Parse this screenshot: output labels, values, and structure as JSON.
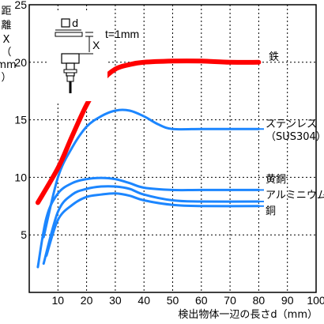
{
  "chart_data": {
    "type": "line",
    "xlabel": "検出物体一辺の長さd（mm）",
    "ylabel": [
      "距",
      "離",
      "X",
      "（",
      "mm",
      "）"
    ],
    "xlim": [
      0,
      100
    ],
    "ylim": [
      0,
      25
    ],
    "xticks": [
      10,
      20,
      30,
      40,
      50,
      60,
      70,
      80,
      90,
      100
    ],
    "yticks": [
      5,
      10,
      15,
      20,
      25
    ],
    "grid": true,
    "series": [
      {
        "name": "鉄",
        "color": "#ff0000",
        "width": 6,
        "x": [
          3,
          10,
          15,
          20,
          25,
          30,
          35,
          40,
          50,
          60,
          70,
          80
        ],
        "y": [
          7.8,
          10.8,
          13.6,
          16.3,
          18.3,
          19.4,
          19.8,
          20.0,
          20.1,
          20.1,
          20.0,
          20.0
        ]
      },
      {
        "name": "ステンレス",
        "name2": "（SUS304）",
        "color": "#1c86ff",
        "width": 3,
        "x": [
          5,
          10,
          15,
          20,
          25,
          30,
          35,
          40,
          45,
          50,
          60,
          70,
          80
        ],
        "y": [
          4.8,
          10.0,
          12.6,
          14.4,
          15.3,
          15.8,
          15.8,
          15.3,
          14.6,
          14.2,
          14.2,
          14.2,
          14.2
        ]
      },
      {
        "name": "黄銅",
        "color": "#1c86ff",
        "width": 3,
        "x": [
          3,
          6,
          10,
          15,
          20,
          25,
          30,
          35,
          40,
          50,
          60,
          80
        ],
        "y": [
          2.2,
          6.5,
          8.6,
          9.5,
          9.85,
          9.95,
          9.85,
          9.5,
          9.1,
          8.9,
          8.9,
          8.9
        ]
      },
      {
        "name": "アルミニウム",
        "color": "#1c86ff",
        "width": 3,
        "x": [
          5,
          10,
          15,
          20,
          25,
          30,
          35,
          40,
          50,
          60,
          80
        ],
        "y": [
          2.5,
          7.0,
          8.5,
          9.0,
          9.2,
          9.2,
          9.0,
          8.5,
          8.0,
          7.9,
          7.9
        ]
      },
      {
        "name": "銅",
        "color": "#1c86ff",
        "width": 3,
        "x": [
          6,
          10,
          15,
          20,
          25,
          30,
          35,
          40,
          50,
          60,
          80
        ],
        "y": [
          3.2,
          6.3,
          7.6,
          8.3,
          8.5,
          8.6,
          8.4,
          8.0,
          7.6,
          7.5,
          7.5
        ]
      }
    ],
    "annotations": {
      "target_label": "d",
      "gap_label": "t=1mm",
      "distance_label": "X"
    }
  }
}
